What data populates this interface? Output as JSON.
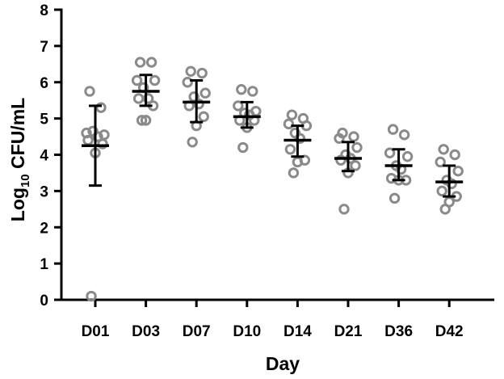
{
  "chart_data": {
    "type": "scatter",
    "title": "",
    "xlabel": "Day",
    "ylabel": {
      "prefix": "Log",
      "subscript": "10",
      "suffix": " CFU/mL"
    },
    "ylim": [
      0,
      8
    ],
    "yticks": [
      "0",
      "1",
      "2",
      "3",
      "4",
      "5",
      "6",
      "7",
      "8"
    ],
    "categories": [
      "D01",
      "D03",
      "D07",
      "D10",
      "D14",
      "D21",
      "D36",
      "D42"
    ],
    "grid": false,
    "legend": "none",
    "colors": {
      "points": "#8a8a8a",
      "summary": "#000000",
      "axes": "#000000"
    },
    "groups": [
      {
        "category": "D01",
        "points": [
          5.75,
          5.3,
          4.6,
          4.55,
          4.65,
          4.5,
          4.4,
          4.3,
          4.05,
          0.1
        ],
        "mean": 4.25,
        "error_low": 3.15,
        "error_high": 5.35
      },
      {
        "category": "D03",
        "points": [
          6.55,
          6.55,
          6.05,
          6.05,
          5.85,
          5.55,
          5.55,
          5.35,
          4.95,
          4.95
        ],
        "mean": 5.75,
        "error_low": 5.35,
        "error_high": 6.2
      },
      {
        "category": "D07",
        "points": [
          6.3,
          6.25,
          6.0,
          5.7,
          5.6,
          5.4,
          5.35,
          5.05,
          4.8,
          4.35
        ],
        "mean": 5.45,
        "error_low": 4.9,
        "error_high": 6.05
      },
      {
        "category": "D10",
        "points": [
          5.8,
          5.75,
          5.35,
          5.2,
          5.15,
          5.1,
          4.95,
          4.95,
          4.75,
          4.2
        ],
        "mean": 5.05,
        "error_low": 4.75,
        "error_high": 5.45
      },
      {
        "category": "D14",
        "points": [
          5.1,
          5.0,
          4.85,
          4.8,
          4.6,
          4.45,
          4.15,
          3.85,
          3.8,
          3.5
        ],
        "mean": 4.4,
        "error_low": 3.95,
        "error_high": 4.8
      },
      {
        "category": "D21",
        "points": [
          4.6,
          4.5,
          4.45,
          4.2,
          4.0,
          3.9,
          3.85,
          3.7,
          3.5,
          2.5
        ],
        "mean": 3.9,
        "error_low": 3.55,
        "error_high": 4.35
      },
      {
        "category": "D36",
        "points": [
          4.7,
          4.55,
          4.05,
          3.95,
          3.7,
          3.6,
          3.35,
          3.3,
          3.3,
          2.8
        ],
        "mean": 3.7,
        "error_low": 3.3,
        "error_high": 4.15
      },
      {
        "category": "D42",
        "points": [
          4.15,
          4.0,
          3.8,
          3.55,
          3.3,
          3.2,
          3.0,
          2.85,
          2.7,
          2.5
        ],
        "mean": 3.25,
        "error_low": 2.85,
        "error_high": 3.7
      }
    ]
  }
}
